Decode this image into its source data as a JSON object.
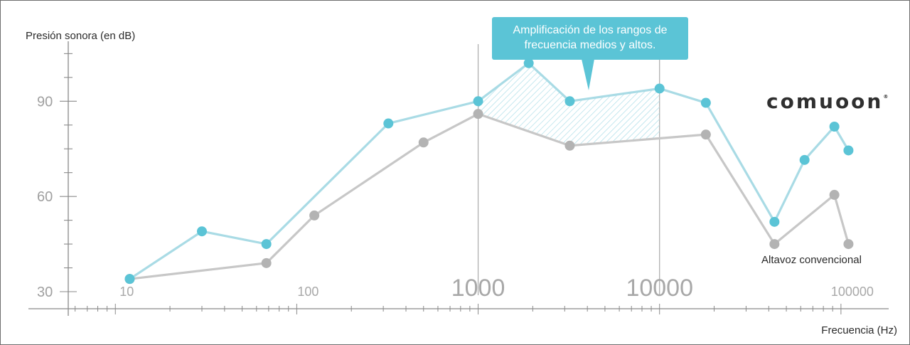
{
  "chart_data": {
    "type": "line",
    "ylabel": "Presión sonora (en dB)",
    "xlabel": "Frecuencia (Hz)",
    "x_scale": "log",
    "xlim": [
      5.5,
      190000
    ],
    "ylim": [
      30,
      108
    ],
    "y_ticks": [
      30,
      60,
      90
    ],
    "x_ticks": [
      {
        "value": 10,
        "label": "10",
        "size": "small"
      },
      {
        "value": 100,
        "label": "100",
        "size": "small"
      },
      {
        "value": 1000,
        "label": "1000",
        "size": "large"
      },
      {
        "value": 10000,
        "label": "10000",
        "size": "large"
      },
      {
        "value": 100000,
        "label": "100000",
        "size": "small"
      }
    ],
    "gridlines_x": [
      1000,
      10000
    ],
    "series": [
      {
        "name": "comuoon",
        "color": "#5bc4d6",
        "points": [
          [
            12,
            34
          ],
          [
            30,
            49
          ],
          [
            68,
            45
          ],
          [
            320,
            83
          ],
          [
            1000,
            90
          ],
          [
            1900,
            102
          ],
          [
            3200,
            90
          ],
          [
            10000,
            94
          ],
          [
            18000,
            89.5
          ],
          [
            43000,
            52
          ],
          [
            63000,
            71.5
          ],
          [
            92000,
            82
          ],
          [
            110000,
            74.5
          ]
        ]
      },
      {
        "name": "Altavoz convencional",
        "color": "#b8b8b8",
        "points": [
          [
            12,
            34
          ],
          [
            68,
            39
          ],
          [
            125,
            54
          ],
          [
            500,
            77
          ],
          [
            1000,
            86
          ],
          [
            3200,
            76
          ],
          [
            18000,
            79.5
          ],
          [
            43000,
            45
          ],
          [
            92000,
            60.5
          ],
          [
            110000,
            45
          ]
        ]
      }
    ],
    "highlight": {
      "x_range": [
        1000,
        10000
      ],
      "style": "hatched"
    },
    "annotation": "Amplificación de los rangos de frecuencia medios y altos.",
    "brand": "comuoon",
    "colors": {
      "accent": "#5bc4d6",
      "conventional": "#b8b8b8",
      "axis": "#8a8a8a",
      "hatch": "#a6dbe6"
    }
  }
}
